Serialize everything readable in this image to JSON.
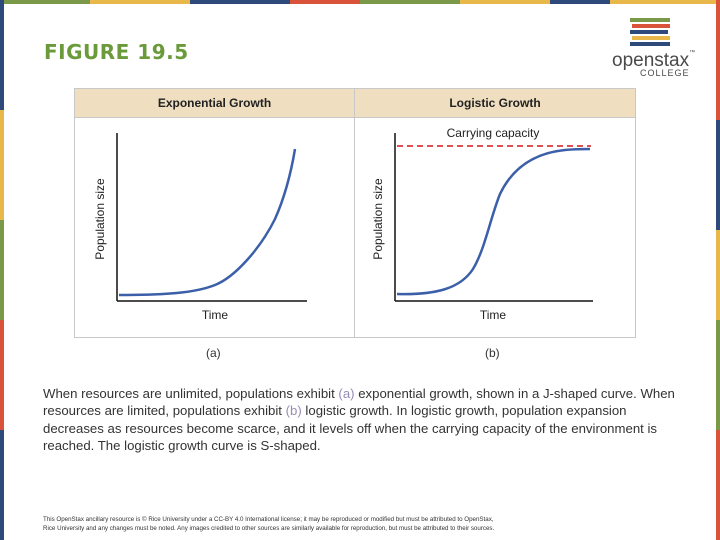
{
  "slide": {
    "title": "FIGURE 19.5",
    "logo_word": "openstax",
    "logo_tm": "™",
    "logo_sub": "COLLEGE",
    "colors": {
      "title": "#6a9a3a",
      "curve": "#3b5fa8",
      "capacity_line": "#d9383a",
      "header_bg": "#efdfc0",
      "highlight": "#9a8bb8"
    }
  },
  "figure": {
    "panel_a": {
      "header": "Exponential Growth",
      "ylabel": "Population size",
      "xlabel": "Time",
      "letter": "(a)"
    },
    "panel_b": {
      "header": "Logistic Growth",
      "ylabel": "Population size",
      "xlabel": "Time",
      "letter": "(b)",
      "annotation": "Carrying capacity"
    }
  },
  "caption": {
    "part1": "When resources are unlimited, populations exhibit ",
    "hl_a": "(a)",
    "part2": " exponential growth, shown in a J-shaped curve. When resources are limited, populations exhibit ",
    "hl_b": "(b)",
    "part3": " logistic growth. In logistic growth, population expansion decreases as resources become scarce, and it levels off when the carrying capacity of the environment is reached. The logistic growth curve is S-shaped."
  },
  "footer": {
    "line1": "This OpenStax ancillary resource is © Rice University under a CC-BY 4.0 International license; it may be reproduced or modified but must be attributed to OpenStax,",
    "line2": "Rice University and any changes must be noted. Any images credited to other sources are similarly available for reproduction, but must be attributed to their sources."
  }
}
